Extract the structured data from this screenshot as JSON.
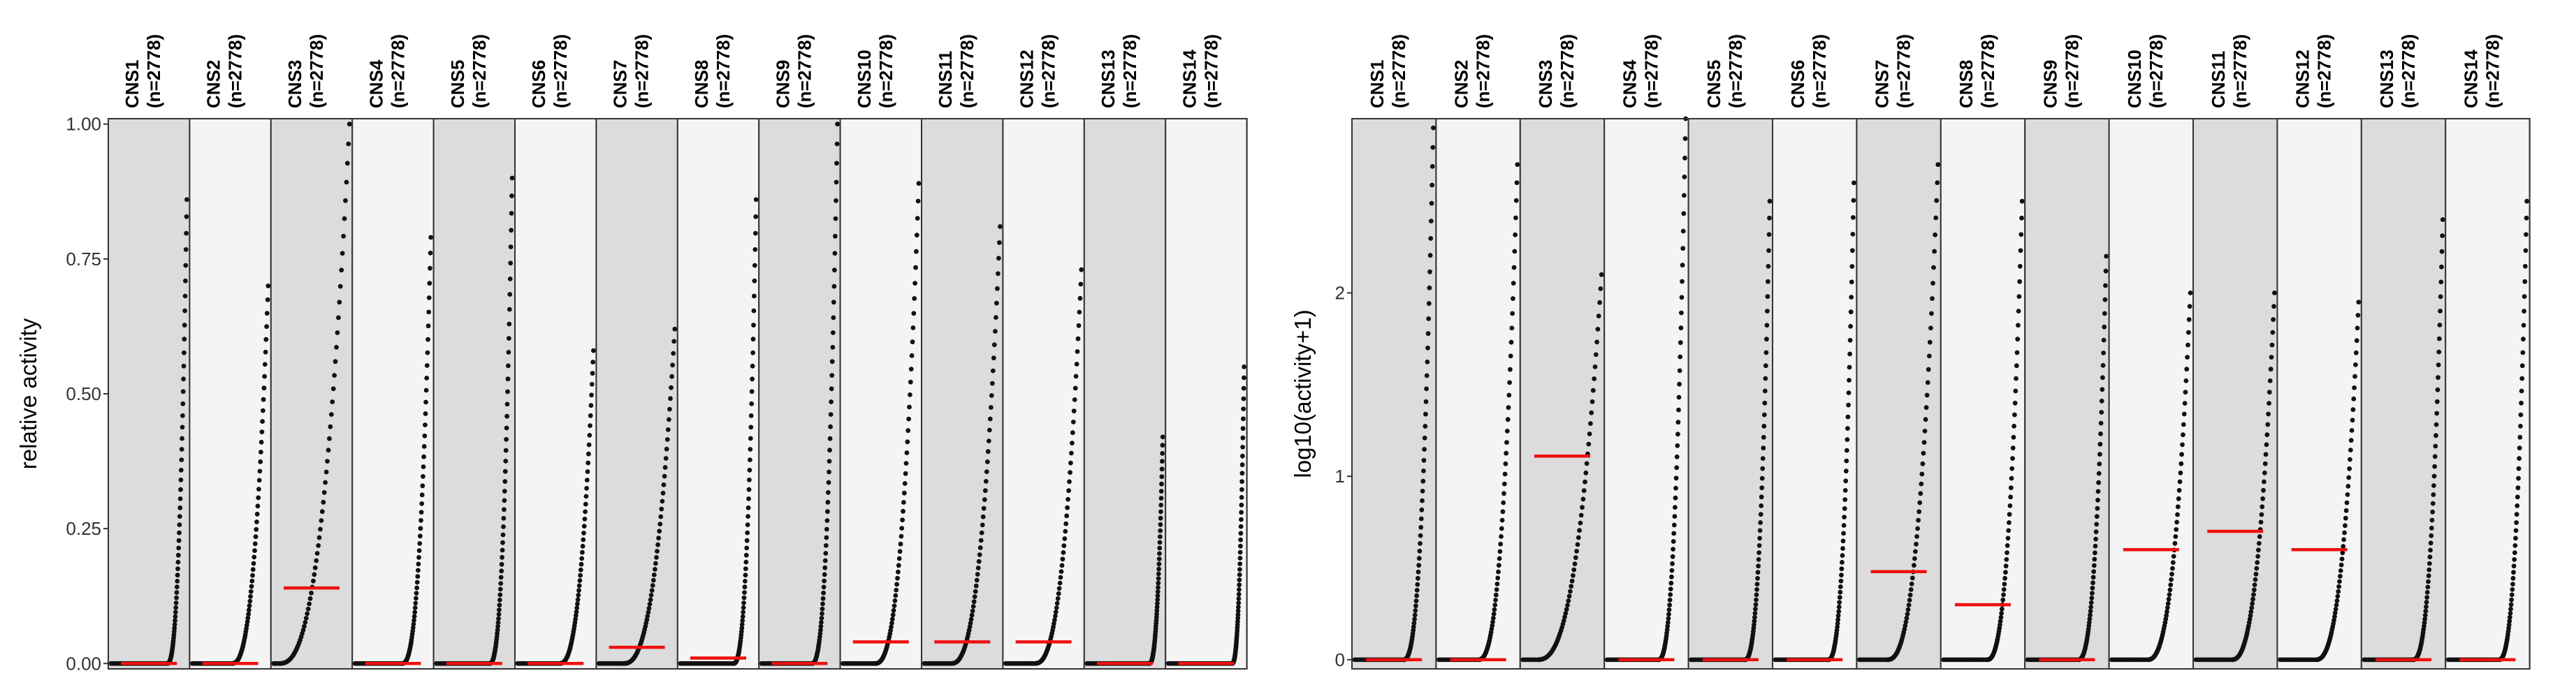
{
  "colors": {
    "panel_dark": "#dcdcdc",
    "panel_light": "#f4f4f4",
    "points": "#111111",
    "median": "#ee1111",
    "border": "#333333"
  },
  "chart_data": [
    {
      "type": "scatter",
      "title": "",
      "ylabel": "relative activity",
      "ylim": [
        -0.01,
        1.01
      ],
      "yticks": [
        "0.00",
        "0.25",
        "0.50",
        "0.75",
        "1.00"
      ],
      "ytick_values": [
        0,
        0.25,
        0.5,
        0.75,
        1
      ],
      "facets": [
        {
          "label": "CNS1",
          "n": "(n=2778)",
          "median": 0.0,
          "start": 0.74,
          "max": 0.86
        },
        {
          "label": "CNS2",
          "n": "(n=2778)",
          "median": 0.0,
          "start": 0.52,
          "max": 0.7
        },
        {
          "label": "CNS3",
          "n": "(n=2778)",
          "median": 0.14,
          "start": 0.07,
          "max": 1.0
        },
        {
          "label": "CNS4",
          "n": "(n=2778)",
          "median": 0.0,
          "start": 0.62,
          "max": 0.79
        },
        {
          "label": "CNS5",
          "n": "(n=2778)",
          "median": 0.0,
          "start": 0.7,
          "max": 0.9
        },
        {
          "label": "CNS6",
          "n": "(n=2778)",
          "median": 0.0,
          "start": 0.55,
          "max": 0.58
        },
        {
          "label": "CNS7",
          "n": "(n=2778)",
          "median": 0.03,
          "start": 0.32,
          "max": 0.62
        },
        {
          "label": "CNS8",
          "n": "(n=2778)",
          "median": 0.01,
          "start": 0.7,
          "max": 0.86
        },
        {
          "label": "CNS9",
          "n": "(n=2778)",
          "median": 0.0,
          "start": 0.66,
          "max": 1.0
        },
        {
          "label": "CNS10",
          "n": "(n=2778)",
          "median": 0.04,
          "start": 0.42,
          "max": 0.89
        },
        {
          "label": "CNS11",
          "n": "(n=2778)",
          "median": 0.04,
          "start": 0.35,
          "max": 0.81
        },
        {
          "label": "CNS12",
          "n": "(n=2778)",
          "median": 0.04,
          "start": 0.38,
          "max": 0.73
        },
        {
          "label": "CNS13",
          "n": "(n=2778)",
          "median": 0.0,
          "start": 0.82,
          "max": 0.42
        },
        {
          "label": "CNS14",
          "n": "(n=2778)",
          "median": 0.0,
          "start": 0.84,
          "max": 0.55
        }
      ]
    },
    {
      "type": "scatter",
      "title": "",
      "ylabel": "log10(activity+1)",
      "ylim": [
        -0.05,
        2.95
      ],
      "yticks": [
        "0",
        "1",
        "2"
      ],
      "ytick_values": [
        0,
        1,
        2
      ],
      "facets": [
        {
          "label": "CNS1",
          "n": "(n=2778)",
          "median": 0.0,
          "start": 0.62,
          "max": 2.9
        },
        {
          "label": "CNS2",
          "n": "(n=2778)",
          "median": 0.0,
          "start": 0.5,
          "max": 2.7
        },
        {
          "label": "CNS3",
          "n": "(n=2778)",
          "median": 1.11,
          "start": 0.18,
          "max": 2.1
        },
        {
          "label": "CNS4",
          "n": "(n=2778)",
          "median": 0.0,
          "start": 0.65,
          "max": 2.95
        },
        {
          "label": "CNS5",
          "n": "(n=2778)",
          "median": 0.0,
          "start": 0.68,
          "max": 2.5
        },
        {
          "label": "CNS6",
          "n": "(n=2778)",
          "median": 0.0,
          "start": 0.67,
          "max": 2.6
        },
        {
          "label": "CNS7",
          "n": "(n=2778)",
          "median": 0.48,
          "start": 0.35,
          "max": 2.7
        },
        {
          "label": "CNS8",
          "n": "(n=2778)",
          "median": 0.3,
          "start": 0.55,
          "max": 2.5
        },
        {
          "label": "CNS9",
          "n": "(n=2778)",
          "median": 0.0,
          "start": 0.64,
          "max": 2.2
        },
        {
          "label": "CNS10",
          "n": "(n=2778)",
          "median": 0.6,
          "start": 0.45,
          "max": 2.0
        },
        {
          "label": "CNS11",
          "n": "(n=2778)",
          "median": 0.7,
          "start": 0.45,
          "max": 2.0
        },
        {
          "label": "CNS12",
          "n": "(n=2778)",
          "median": 0.6,
          "start": 0.45,
          "max": 1.95
        },
        {
          "label": "CNS13",
          "n": "(n=2778)",
          "median": 0.0,
          "start": 0.62,
          "max": 2.4
        },
        {
          "label": "CNS14",
          "n": "(n=2778)",
          "median": 0.0,
          "start": 0.64,
          "max": 2.5
        }
      ]
    }
  ]
}
